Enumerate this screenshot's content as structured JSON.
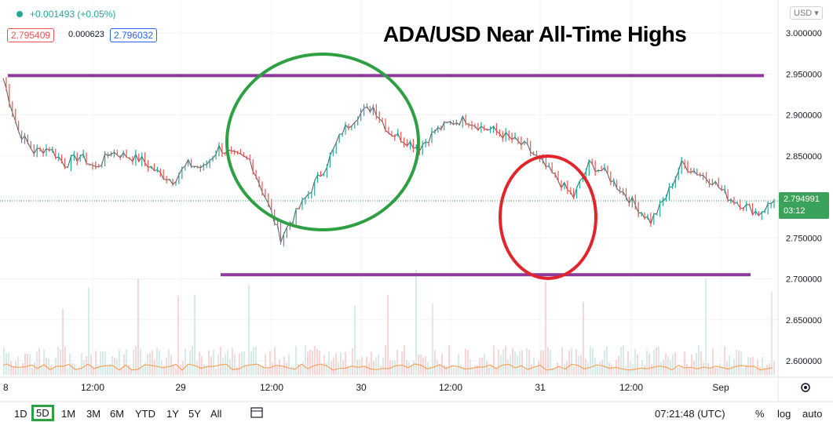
{
  "header": {
    "change": "+0.001493 (+0.05%)",
    "bid": "2.795409",
    "spread": "0.000623",
    "ask": "2.796032",
    "currency": "USD"
  },
  "chart_data": {
    "type": "line",
    "title": "ADA/USD Near All-Time Highs",
    "x_ticks": [
      "8",
      "12:00",
      "29",
      "12:00",
      "30",
      "12:00",
      "31",
      "12:00",
      "Sep"
    ],
    "y_ticks": [
      "3.000000",
      "2.950000",
      "2.900000",
      "2.850000",
      "2.800000",
      "2.750000",
      "2.700000",
      "2.650000",
      "2.600000"
    ],
    "ylim": [
      2.58,
      3.02
    ],
    "last_price": "2.794991",
    "countdown": "03:12",
    "series": [
      {
        "x": [
          0,
          4,
          8,
          12,
          16,
          20,
          24,
          28,
          32,
          36,
          40,
          44,
          48,
          52,
          56,
          60,
          64,
          68,
          72,
          76,
          80,
          84,
          88,
          92,
          96,
          100,
          104,
          108,
          112,
          116,
          120,
          124,
          128,
          132,
          136,
          140,
          144,
          148,
          152,
          156,
          160,
          164,
          168,
          172,
          176,
          180,
          184,
          188,
          192,
          196,
          200
        ],
        "values": [
          2.945,
          2.88,
          2.855,
          2.86,
          2.84,
          2.85,
          2.835,
          2.855,
          2.85,
          2.845,
          2.83,
          2.82,
          2.84,
          2.835,
          2.86,
          2.85,
          2.845,
          2.8,
          2.75,
          2.78,
          2.81,
          2.84,
          2.88,
          2.9,
          2.91,
          2.88,
          2.87,
          2.86,
          2.88,
          2.89,
          2.895,
          2.885,
          2.88,
          2.87,
          2.86,
          2.84,
          2.82,
          2.8,
          2.84,
          2.83,
          2.81,
          2.79,
          2.77,
          2.8,
          2.84,
          2.83,
          2.82,
          2.8,
          2.79,
          2.78,
          2.795
        ]
      }
    ],
    "annotations": {
      "resistance": 2.948,
      "support": 2.705
    }
  },
  "toolbar": {
    "ranges": [
      "1D",
      "5D",
      "1M",
      "3M",
      "6M",
      "YTD",
      "1Y",
      "5Y",
      "All"
    ],
    "active_range": "5D",
    "time": "07:21:48 (UTC)",
    "percent": "%",
    "log": "log",
    "auto": "auto"
  },
  "colors": {
    "up": "#26a69a",
    "down": "#ef5350",
    "resistance": "#8e3a9c",
    "green_circle": "#2ea043",
    "red_circle": "#e0262b"
  }
}
